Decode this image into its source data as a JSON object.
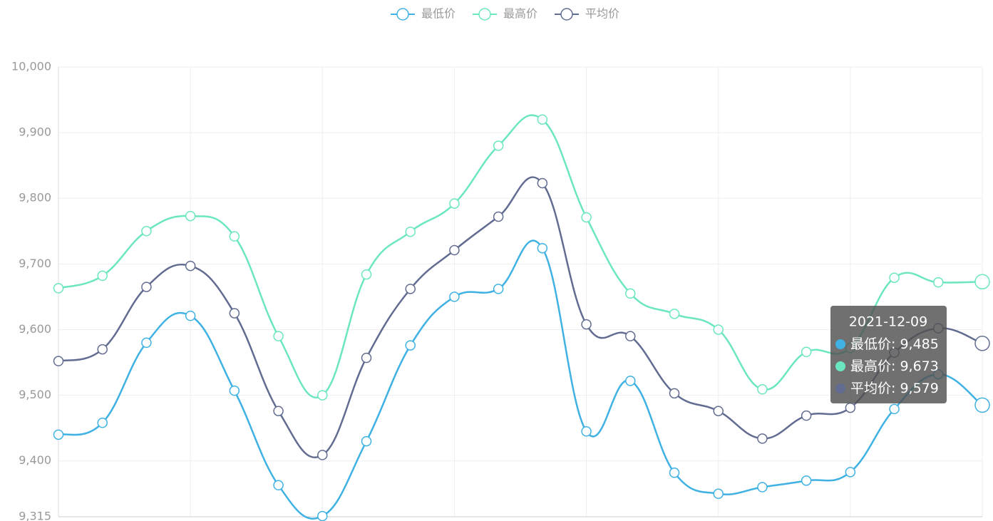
{
  "chart_data": {
    "type": "line",
    "categories": [
      null,
      null,
      null,
      null,
      null,
      null,
      null,
      null,
      null,
      null,
      null,
      null,
      null,
      null,
      null,
      null,
      null,
      null,
      null,
      null,
      null,
      "2021-12-09"
    ],
    "series": [
      {
        "name": "最低价",
        "color": "#3fb1e3",
        "values": [
          9440,
          9458,
          9580,
          9621,
          9507,
          9363,
          9316,
          9430,
          9576,
          9650,
          9662,
          9724,
          9445,
          9522,
          9382,
          9350,
          9360,
          9370,
          9383,
          9479,
          9532,
          9485
        ]
      },
      {
        "name": "最高价",
        "color": "#6be6c1",
        "values": [
          9663,
          9682,
          9750,
          9773,
          9742,
          9590,
          9500,
          9684,
          9749,
          9792,
          9880,
          9920,
          9771,
          9655,
          9624,
          9600,
          9509,
          9566,
          9572,
          9679,
          9672,
          9673
        ]
      },
      {
        "name": "平均价",
        "color": "#626c91",
        "values": [
          9552,
          9570,
          9665,
          9697,
          9625,
          9476,
          9409,
          9557,
          9662,
          9721,
          9772,
          9823,
          9608,
          9590,
          9503,
          9476,
          9434,
          9469,
          9481,
          9565,
          9602,
          9579
        ]
      }
    ],
    "ylim": [
      9315,
      10000
    ],
    "yticks": [
      {
        "value": 9315,
        "label": "9,315"
      },
      {
        "value": 9400,
        "label": "9,400"
      },
      {
        "value": 9500,
        "label": "9,500"
      },
      {
        "value": 9600,
        "label": "9,600"
      },
      {
        "value": 9700,
        "label": "9,700"
      },
      {
        "value": 9800,
        "label": "9,800"
      },
      {
        "value": 9900,
        "label": "9,900"
      },
      {
        "value": 10000,
        "label": "10,000"
      }
    ],
    "grid": true,
    "smooth": true,
    "legend": "top",
    "tooltip": {
      "value_labels": [
        "9,485",
        "9,673",
        "9,579"
      ]
    }
  }
}
